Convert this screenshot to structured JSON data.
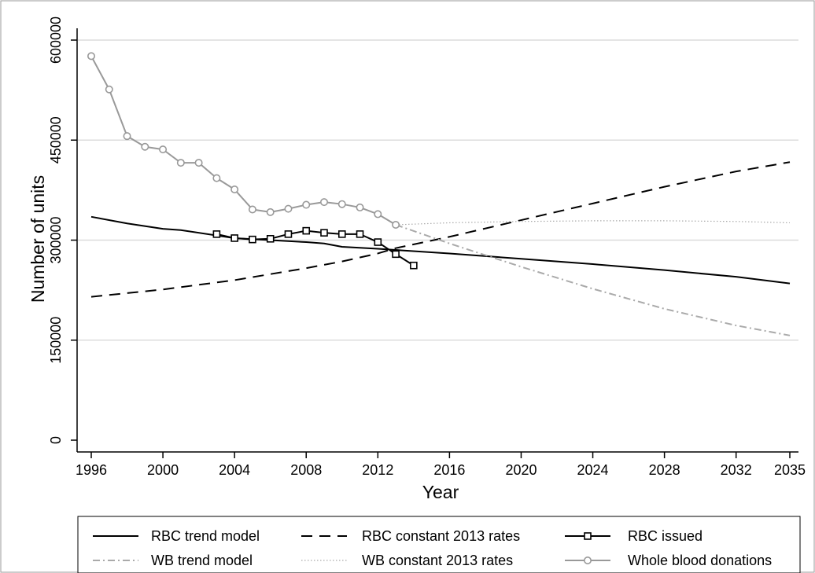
{
  "chart_data": {
    "type": "line",
    "xlabel": "Year",
    "ylabel": "Number of units",
    "xlim": [
      1996,
      2035
    ],
    "ylim": [
      0,
      600000
    ],
    "x_ticks": [
      1996,
      2000,
      2004,
      2008,
      2012,
      2016,
      2020,
      2024,
      2028,
      2032,
      2035
    ],
    "y_ticks": [
      0,
      150000,
      300000,
      450000,
      600000
    ],
    "grid": "horizontal",
    "legend_position": "bottom",
    "series": [
      {
        "name": "RBC trend model",
        "style": "solid",
        "color": "#000000",
        "marker": "none",
        "x": [
          1996,
          1998,
          2000,
          2001,
          2004,
          2006,
          2008,
          2009,
          2010,
          2012,
          2016,
          2020,
          2024,
          2028,
          2032,
          2035
        ],
        "y": [
          335000,
          325000,
          317000,
          315000,
          303000,
          300000,
          297000,
          295000,
          290000,
          287000,
          280000,
          272000,
          264000,
          255000,
          245000,
          235000
        ]
      },
      {
        "name": "RBC constant 2013 rates",
        "style": "dashed",
        "color": "#000000",
        "marker": "none",
        "x": [
          1996,
          2000,
          2004,
          2008,
          2010,
          2012,
          2013,
          2016,
          2020,
          2024,
          2028,
          2032,
          2035
        ],
        "y": [
          215000,
          226000,
          240000,
          258000,
          268000,
          280000,
          288000,
          305000,
          330000,
          355000,
          380000,
          403000,
          417000
        ]
      },
      {
        "name": "RBC issued",
        "style": "solid",
        "color": "#000000",
        "marker": "square",
        "x": [
          2003,
          2004,
          2005,
          2006,
          2007,
          2008,
          2009,
          2010,
          2011,
          2012,
          2013,
          2014
        ],
        "y": [
          309000,
          303000,
          301000,
          302000,
          309000,
          314000,
          311000,
          309000,
          309000,
          297000,
          279000,
          262000
        ]
      },
      {
        "name": "WB trend model",
        "style": "dashdot",
        "color": "#aaaaaa",
        "marker": "none",
        "x": [
          2013,
          2016,
          2020,
          2024,
          2028,
          2032,
          2035
        ],
        "y": [
          323000,
          295000,
          260000,
          227000,
          197000,
          172000,
          157000
        ]
      },
      {
        "name": "WB constant 2013 rates",
        "style": "dotted",
        "color": "#aaaaaa",
        "marker": "none",
        "x": [
          2013,
          2016,
          2020,
          2024,
          2028,
          2032,
          2035
        ],
        "y": [
          323000,
          326000,
          328000,
          329000,
          329000,
          328000,
          326000
        ]
      },
      {
        "name": "Whole blood donations",
        "style": "solid",
        "color": "#999999",
        "marker": "circle",
        "x": [
          1996,
          1997,
          1998,
          1999,
          2000,
          2001,
          2002,
          2003,
          2004,
          2005,
          2006,
          2007,
          2008,
          2009,
          2010,
          2011,
          2012,
          2013
        ],
        "y": [
          576000,
          526000,
          456000,
          440000,
          436000,
          416000,
          416000,
          393000,
          376000,
          346000,
          342000,
          347000,
          353000,
          357000,
          354000,
          349000,
          339000,
          323000
        ]
      }
    ]
  }
}
